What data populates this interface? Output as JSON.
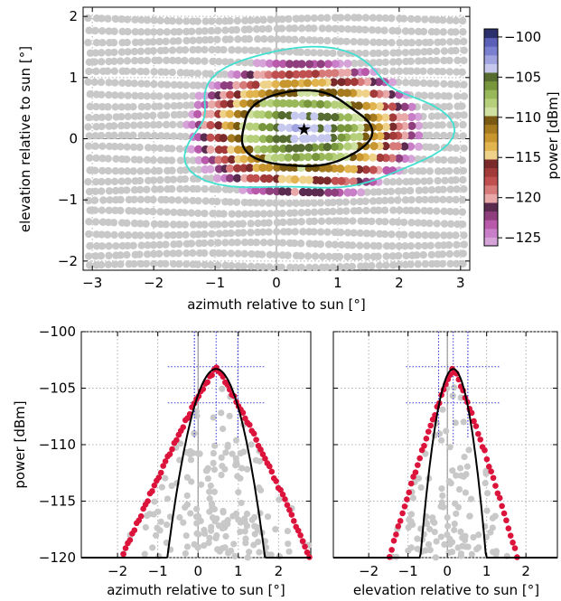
{
  "colors": {
    "scatter_gray": "#c8c8c8",
    "fit_line": "#000000",
    "contour_outer": "#40e0d0",
    "peak_marker": "#dc143c",
    "beam_cross": "#3b3bd6",
    "colormap": [
      "#d5a3d8",
      "#c97ec8",
      "#b85aa9",
      "#8f3f7d",
      "#5a2a4f",
      "#e8a9a8",
      "#d77b7a",
      "#c0504f",
      "#a33a3a",
      "#7a2a2a",
      "#efd28a",
      "#e2b450",
      "#c7962f",
      "#a67a1e",
      "#7a5a12",
      "#cfe0a0",
      "#b5cf7a",
      "#98b85a",
      "#78973c",
      "#556b2f",
      "#c6c8ee",
      "#9fa4e0",
      "#7a80cf",
      "#5a60b8",
      "#2b2f6b"
    ]
  },
  "chart_data": [
    {
      "type": "scatter",
      "subtype": "2d power map (scatter colored by power) with contours",
      "xlabel": "azimuth relative to sun [°]",
      "ylabel": "elevation relative to sun [°]",
      "xlim": [
        -3.15,
        3.15
      ],
      "ylim": [
        -2.15,
        2.15
      ],
      "xticks": [
        -3,
        -2,
        -1,
        0,
        1,
        2,
        3
      ],
      "xtick_labels": [
        "−3",
        "−2",
        "−1",
        "0",
        "1",
        "2",
        "3"
      ],
      "yticks": [
        -2,
        -1,
        0,
        1,
        2
      ],
      "ytick_labels": [
        "−2",
        "−1",
        "0",
        "1",
        "2"
      ],
      "grid": true,
      "peak": {
        "x": 0.45,
        "y": 0.15,
        "marker": "star"
      },
      "colorbar": {
        "label": "power [dBm]",
        "range": [
          -126,
          -99
        ],
        "ticks": [
          -100,
          -105,
          -110,
          -115,
          -120,
          -125
        ],
        "tick_labels": [
          "−100",
          "−105",
          "−110",
          "−115",
          "−120",
          "−125"
        ]
      },
      "contours": [
        {
          "level": "inner",
          "color": "black",
          "center": [
            0.45,
            0.15
          ],
          "semi_axes": [
            1.05,
            0.62
          ]
        },
        {
          "level": "outer",
          "color": "turquoise",
          "center": [
            0.55,
            0.25
          ],
          "semi_axes": [
            2.05,
            1.15
          ]
        }
      ]
    },
    {
      "type": "scatter",
      "subtype": "azimuth cut",
      "xlabel": "azimuth relative to sun [°]",
      "ylabel": "power [dBm]",
      "xlim": [
        -2.9,
        2.8
      ],
      "ylim": [
        -120,
        -100
      ],
      "xticks": [
        -2,
        -1,
        0,
        1,
        2
      ],
      "xtick_labels": [
        "−2",
        "−1",
        "0",
        "1",
        "2"
      ],
      "yticks": [
        -100,
        -105,
        -110,
        -115,
        -120
      ],
      "ytick_labels": [
        "−100",
        "−105",
        "−110",
        "−115",
        "−120"
      ],
      "grid": true,
      "peak": {
        "x": 0.45,
        "y": -103.3
      },
      "fit_width": 0.9,
      "edge_decay": 6.3
    },
    {
      "type": "scatter",
      "subtype": "elevation cut",
      "xlabel": "elevation relative to sun [°]",
      "xlim": [
        -2.9,
        2.8
      ],
      "ylim": [
        -120,
        -100
      ],
      "xticks": [
        -2,
        -1,
        0,
        1,
        2
      ],
      "xtick_labels": [
        "−2",
        "−1",
        "0",
        "1",
        "2"
      ],
      "grid": true,
      "peak": {
        "x": 0.15,
        "y": -103.3
      },
      "fit_width": 0.62,
      "edge_decay": 9.5
    }
  ]
}
